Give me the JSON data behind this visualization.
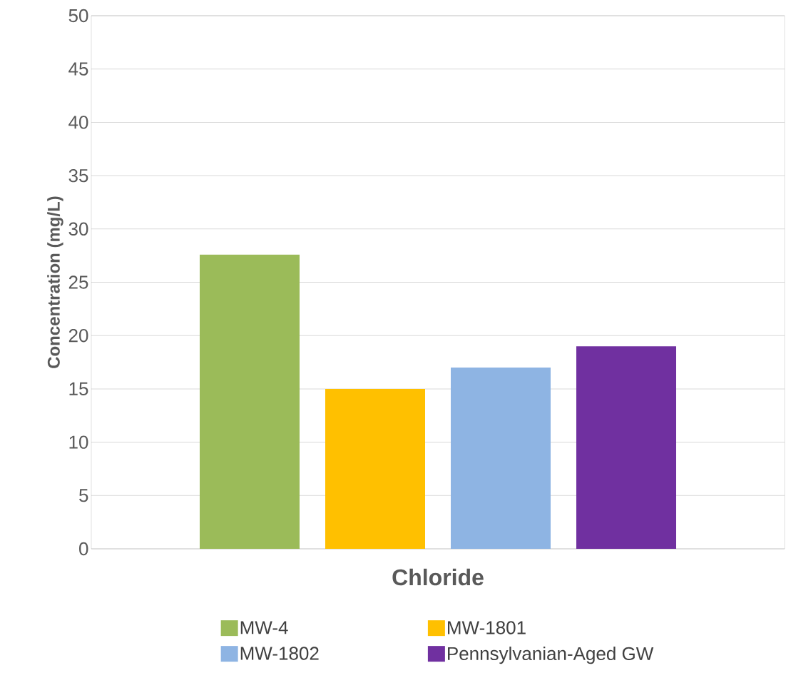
{
  "chart_data": {
    "type": "bar",
    "ylabel": "Concentration (mg/L)",
    "categories": [
      "Chloride"
    ],
    "series": [
      {
        "name": "MW-4",
        "color": "#9bbb59",
        "values": [
          27.6
        ]
      },
      {
        "name": "MW-1801",
        "color": "#ffc000",
        "values": [
          15
        ]
      },
      {
        "name": "MW-1802",
        "color": "#8eb4e3",
        "values": [
          17
        ]
      },
      {
        "name": "Pennsylvanian-Aged GW",
        "color": "#7030a0",
        "values": [
          19
        ]
      }
    ],
    "ylim": [
      0,
      50
    ],
    "yticks": [
      0,
      5,
      10,
      15,
      20,
      25,
      30,
      35,
      40,
      45,
      50
    ],
    "grid": "y",
    "legend": "bottom"
  }
}
